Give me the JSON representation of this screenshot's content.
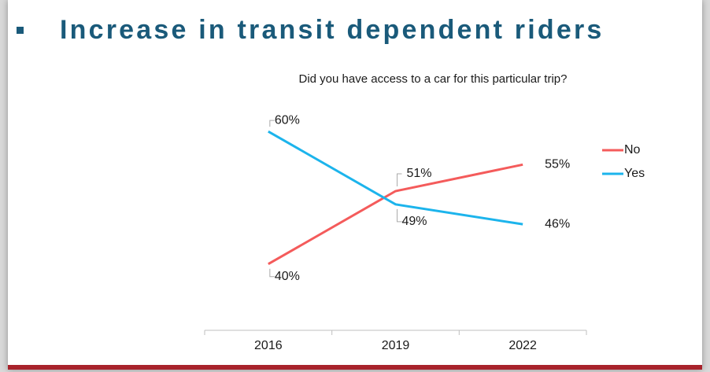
{
  "title": "Increase in transit dependent riders",
  "chart_data": {
    "type": "line",
    "title": "Did you have access to a car for this particular trip?",
    "categories": [
      "2016",
      "2019",
      "2022"
    ],
    "series": [
      {
        "name": "No",
        "color": "#f45b5b",
        "values": [
          40,
          51,
          55
        ],
        "value_labels": [
          "40%",
          "51%",
          "55%"
        ]
      },
      {
        "name": "Yes",
        "color": "#1cb4ec",
        "values": [
          60,
          49,
          46
        ],
        "value_labels": [
          "60%",
          "49%",
          "46%"
        ]
      }
    ],
    "ylim": [
      30,
      65
    ],
    "legend": "right"
  }
}
